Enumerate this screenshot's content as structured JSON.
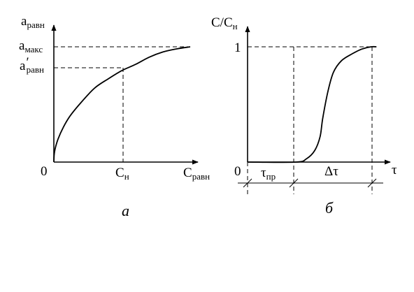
{
  "figure": {
    "panel_a": {
      "y_axis_main": "a",
      "y_axis_sub": "равн",
      "y_tick_max_main": "a",
      "y_tick_max_sub": "макс",
      "y_tick_eq_main": "a",
      "y_tick_eq_prime": "′",
      "y_tick_eq_sub": "равн",
      "origin": "0",
      "x_tick_main": "C",
      "x_tick_sub": "н",
      "x_axis_main": "C",
      "x_axis_sub": "равн",
      "caption": "а"
    },
    "panel_b": {
      "y_axis_main": "C/C",
      "y_axis_sub": "н",
      "y_tick_one": "1",
      "origin": "0",
      "x_axis": "τ",
      "interval_1_main": "τ",
      "interval_1_sub": "пр",
      "interval_2": "Δτ",
      "caption": "б"
    }
  },
  "chart_data": [
    {
      "type": "line",
      "panel": "а",
      "xlabel": "Cравн",
      "ylabel": "aравн",
      "x_ticks": [
        "0",
        "Cн"
      ],
      "y_ticks": [
        "aмакс",
        "a′равн"
      ],
      "xlim": [
        0,
        1
      ],
      "ylim": [
        0,
        1.22
      ],
      "series": [
        {
          "x": [
            0,
            0.005,
            0.03,
            0.07,
            0.12,
            0.2,
            0.3,
            0.4,
            0.5,
            0.6,
            0.7,
            0.8,
            0.9,
            1.0
          ],
          "y": [
            0,
            0.1,
            0.22,
            0.34,
            0.45,
            0.58,
            0.72,
            0.81,
            0.89,
            0.95,
            1.02,
            1.07,
            1.1,
            1.12
          ]
        }
      ],
      "guides": {
        "x_Cn": 0.5,
        "y_a_eq": 0.89,
        "y_a_max": 1.12
      }
    },
    {
      "type": "line",
      "panel": "б",
      "xlabel": "τ",
      "ylabel": "C/Cн",
      "y_ticks": [
        "1"
      ],
      "xlim": [
        0,
        1
      ],
      "ylim": [
        0,
        1.2
      ],
      "series": [
        {
          "x": [
            0,
            0.36,
            0.44,
            0.5,
            0.54,
            0.56,
            0.6,
            0.64,
            0.7,
            0.78,
            0.85,
            0.92,
            0.96
          ],
          "y": [
            0,
            0,
            0.03,
            0.1,
            0.22,
            0.38,
            0.62,
            0.78,
            0.88,
            0.94,
            0.98,
            1.0,
            1.0
          ]
        }
      ],
      "intervals": {
        "tau_pr": [
          0,
          0.36
        ],
        "delta_tau": [
          0.36,
          0.96
        ]
      }
    }
  ]
}
